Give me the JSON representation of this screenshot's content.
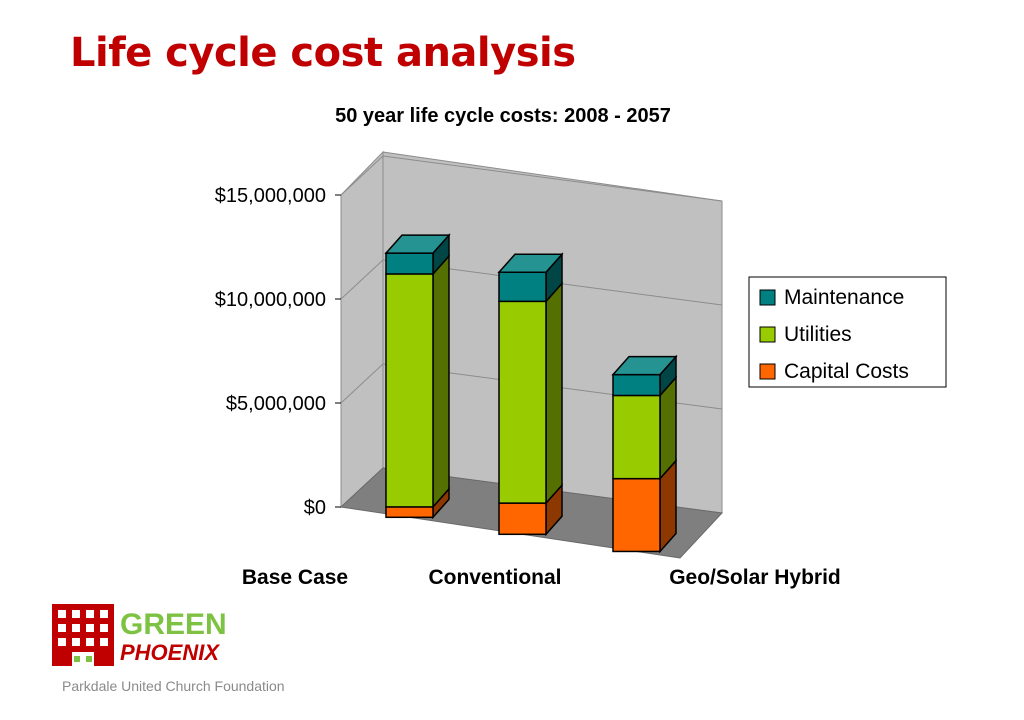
{
  "slide": {
    "title": "Life cycle cost analysis",
    "footer": "Parkdale United Church Foundation"
  },
  "logo": {
    "line1": "GREEN",
    "line2": "PHOENIX",
    "color_red": "#c00000",
    "color_green": "#7dc242"
  },
  "chart_data": {
    "type": "bar",
    "stacked": true,
    "style": "3d",
    "title": "50 year life cycle costs: 2008 - 2057",
    "xlabel": "",
    "ylabel": "",
    "categories": [
      "Base Case",
      "Conventional",
      "Geo/Solar Hybrid"
    ],
    "ylim": [
      0,
      15000000
    ],
    "yticks": [
      0,
      5000000,
      10000000,
      15000000
    ],
    "ytick_labels": [
      "$0",
      "$5,000,000",
      "$10,000,000",
      "$15,000,000"
    ],
    "grid": true,
    "legend_position": "right",
    "series": [
      {
        "name": "Capital Costs",
        "values": [
          500000,
          1500000,
          3500000
        ],
        "color": "#ff6600"
      },
      {
        "name": "Utilities",
        "values": [
          11200000,
          9700000,
          4000000
        ],
        "color": "#99cc00"
      },
      {
        "name": "Maintenance",
        "values": [
          1000000,
          1400000,
          1000000
        ],
        "color": "#008080"
      }
    ],
    "legend_order": [
      "Maintenance",
      "Utilities",
      "Capital Costs"
    ]
  }
}
